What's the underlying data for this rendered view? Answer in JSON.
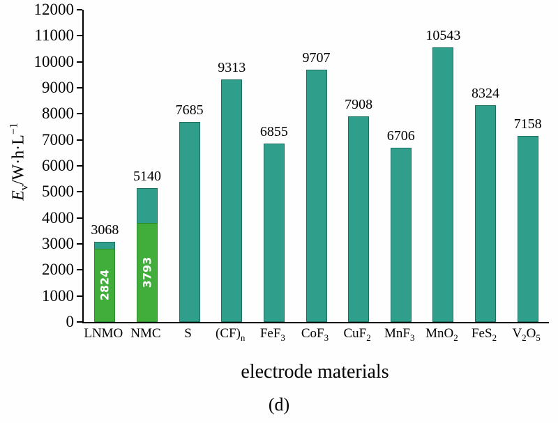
{
  "figure": {
    "caption": "(d)",
    "xlabel": "electrode materials",
    "ylabel": {
      "var": "E",
      "sub": "v",
      "unit": "/W·h·L",
      "sup": "−1"
    }
  },
  "colors": {
    "bar_teal": "#2f9f8b",
    "bar_teal_border": "#1b6f60",
    "bar_green": "#41ae3b",
    "bar_green_border": "#2d8c2a",
    "inner_label": "#ffffff",
    "axis": "#000000"
  },
  "chart_data": {
    "type": "bar",
    "title": "",
    "xlabel": "electrode materials",
    "ylabel": "Ev/W·h·L−1",
    "ylim": [
      0,
      12000
    ],
    "ytick_step": 1000,
    "grid": false,
    "legend": false,
    "categories": [
      "LNMO",
      "NMC",
      "S",
      "(CF)n",
      "FeF3",
      "CoF3",
      "CuF2",
      "MnF3",
      "MnO2",
      "FeS2",
      "V2O5"
    ],
    "values_total": [
      3068,
      5140,
      7685,
      9313,
      6855,
      9707,
      7908,
      6706,
      10543,
      8324,
      7158
    ],
    "values_inner_green": [
      2824,
      3793,
      null,
      null,
      null,
      null,
      null,
      null,
      null,
      null,
      null
    ],
    "bars": [
      {
        "label": [
          {
            "t": "LNMO",
            "s": ""
          }
        ],
        "total": 3068,
        "inner": 2824
      },
      {
        "label": [
          {
            "t": "NMC",
            "s": ""
          }
        ],
        "total": 5140,
        "inner": 3793
      },
      {
        "label": [
          {
            "t": "S",
            "s": ""
          }
        ],
        "total": 7685
      },
      {
        "label": [
          {
            "t": "(CF)",
            "s": "n"
          }
        ],
        "total": 9313
      },
      {
        "label": [
          {
            "t": "FeF",
            "s": "3"
          }
        ],
        "total": 6855
      },
      {
        "label": [
          {
            "t": "CoF",
            "s": "3"
          }
        ],
        "total": 9707
      },
      {
        "label": [
          {
            "t": "CuF",
            "s": "2"
          }
        ],
        "total": 7908
      },
      {
        "label": [
          {
            "t": "MnF",
            "s": "3"
          }
        ],
        "total": 6706
      },
      {
        "label": [
          {
            "t": "MnO",
            "s": "2"
          }
        ],
        "total": 10543
      },
      {
        "label": [
          {
            "t": "FeS",
            "s": "2"
          }
        ],
        "total": 8324
      },
      {
        "label": [
          {
            "t": "V",
            "s": "2"
          },
          {
            "t": "O",
            "s": "5"
          }
        ],
        "total": 7158
      }
    ]
  }
}
